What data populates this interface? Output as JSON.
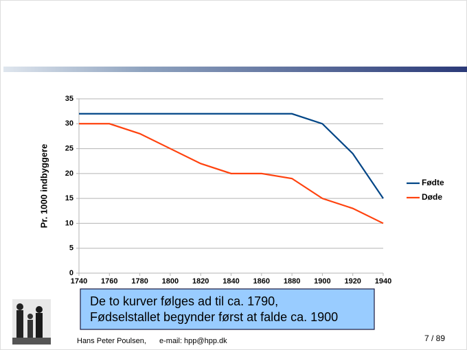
{
  "chart_data": {
    "type": "line",
    "ylabel": "Pr. 1000 indbyggere",
    "x": [
      1740,
      1760,
      1780,
      1800,
      1820,
      1840,
      1860,
      1880,
      1900,
      1920,
      1940
    ],
    "xlim": [
      1740,
      1940
    ],
    "xticks": [
      1740,
      1760,
      1780,
      1800,
      1820,
      1840,
      1860,
      1880,
      1900,
      1920,
      1940
    ],
    "ylim": [
      0,
      35
    ],
    "yticks": [
      0,
      5,
      10,
      15,
      20,
      25,
      30,
      35
    ],
    "grid": true,
    "legend": "right",
    "series": [
      {
        "name": "Fødte",
        "color": "#004586",
        "values": [
          32,
          32,
          32,
          32,
          32,
          32,
          32,
          32,
          30,
          24,
          15
        ]
      },
      {
        "name": "Døde",
        "color": "#ff420e",
        "values": [
          30,
          30,
          28,
          25,
          22,
          20,
          20,
          19,
          15,
          13,
          10
        ]
      }
    ]
  },
  "annotations": [
    "De to kurver følges ad til ca. 1790,",
    "Fødselstallet begynder først at falde ca. 1900"
  ],
  "footer": {
    "author": "Hans Peter Poulsen,",
    "email": "e-mail: hpp@hpp.dk",
    "page": "7 / 89"
  }
}
